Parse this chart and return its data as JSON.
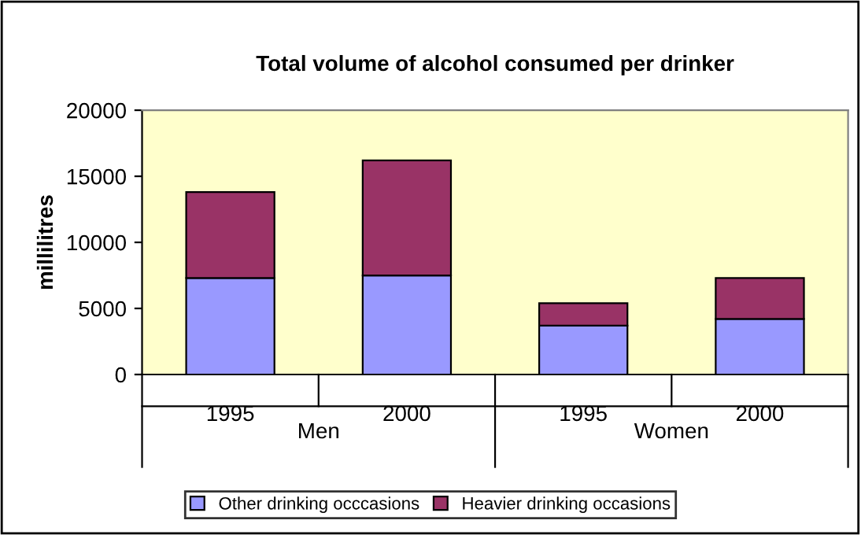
{
  "chart_data": {
    "type": "bar",
    "title": "Total volume of alcohol consumed per drinker",
    "ylabel": "millilitres",
    "categories": [
      "1995",
      "2000",
      "1995",
      "2000"
    ],
    "annotations": [
      "Men",
      "Women"
    ],
    "stacked": true,
    "series": [
      {
        "name": "Other drinking occcasions",
        "color": "#9999ff",
        "values": [
          7300,
          7500,
          3700,
          4200
        ]
      },
      {
        "name": "Heavier drinking occasions",
        "color": "#993366",
        "values": [
          6500,
          8700,
          1700,
          3100
        ]
      }
    ],
    "ylim": [
      0,
      20000
    ],
    "yticks": [
      0,
      5000,
      10000,
      15000,
      20000
    ],
    "grid": false,
    "legend": "bottom"
  }
}
